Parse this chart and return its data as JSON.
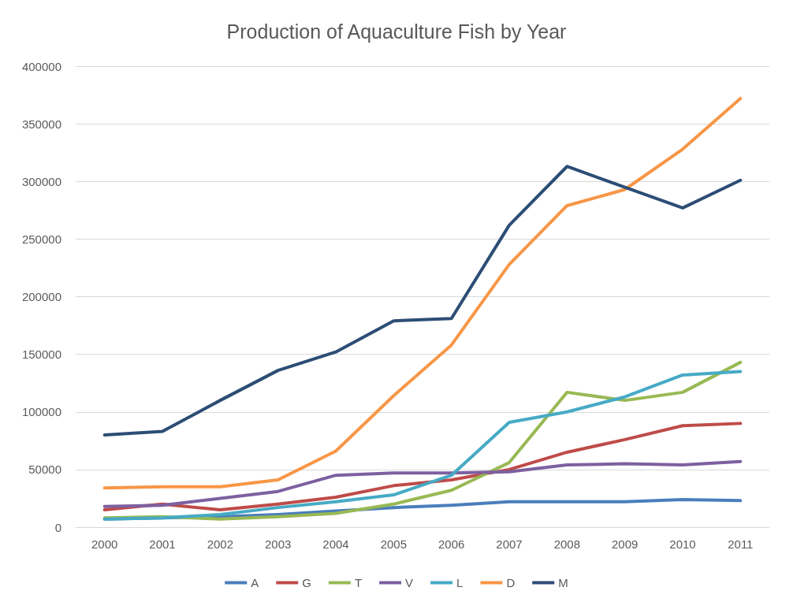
{
  "chart_data": {
    "type": "line",
    "title": "Production of Aquaculture Fish by Year",
    "categories": [
      "2000",
      "2001",
      "2002",
      "2003",
      "2004",
      "2005",
      "2006",
      "2007",
      "2008",
      "2009",
      "2010",
      "2011"
    ],
    "series": [
      {
        "name": "A",
        "color": "#4a7ebb",
        "values": [
          7000,
          8000,
          9000,
          11000,
          14000,
          17000,
          19000,
          22000,
          22000,
          22000,
          24000,
          23000
        ]
      },
      {
        "name": "G",
        "color": "#be4b48",
        "values": [
          15000,
          20000,
          15000,
          20000,
          26000,
          36000,
          41000,
          50000,
          65000,
          76000,
          88000,
          90000
        ]
      },
      {
        "name": "T",
        "color": "#98b954",
        "values": [
          8000,
          9000,
          7000,
          9000,
          12000,
          20000,
          32000,
          56000,
          117000,
          110000,
          117000,
          143000
        ]
      },
      {
        "name": "V",
        "color": "#7d60a0",
        "values": [
          18000,
          19000,
          25000,
          31000,
          45000,
          47000,
          47000,
          48000,
          54000,
          55000,
          54000,
          57000
        ]
      },
      {
        "name": "L",
        "color": "#46aac5",
        "values": [
          7000,
          8000,
          11000,
          17000,
          22000,
          28000,
          45000,
          91000,
          100000,
          113000,
          132000,
          135000
        ]
      },
      {
        "name": "D",
        "color": "#f79646",
        "values": [
          34000,
          35000,
          35000,
          41000,
          66000,
          114000,
          158000,
          228000,
          279000,
          293000,
          328000,
          372000
        ]
      },
      {
        "name": "M",
        "color": "#2c4d75",
        "values": [
          80000,
          83000,
          110000,
          136000,
          152000,
          179000,
          181000,
          262000,
          313000,
          295000,
          277000,
          301000
        ]
      }
    ],
    "ylim": [
      0,
      400000
    ],
    "yticks": [
      0,
      50000,
      100000,
      150000,
      200000,
      250000,
      300000,
      350000,
      400000
    ],
    "grid": "y",
    "legend": "bottom",
    "marker": "none",
    "line_style": "solid"
  }
}
